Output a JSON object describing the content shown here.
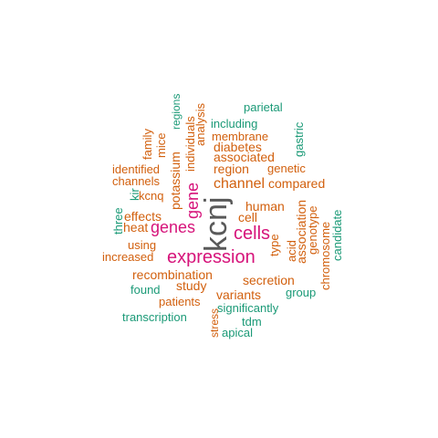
{
  "colors": {
    "dark": "#595959",
    "pink": "#d6137a",
    "orange": "#d2600e",
    "green": "#1b9a77"
  },
  "words": [
    {
      "key": "kcnj",
      "text": "kcnj",
      "color": "dark"
    },
    {
      "key": "cells",
      "text": "cells",
      "color": "pink"
    },
    {
      "key": "expression",
      "text": "expression",
      "color": "pink"
    },
    {
      "key": "genes",
      "text": "genes",
      "color": "pink"
    },
    {
      "key": "gene",
      "text": "gene",
      "color": "pink"
    },
    {
      "key": "channel",
      "text": "channel",
      "color": "orange"
    },
    {
      "key": "region",
      "text": "region",
      "color": "orange"
    },
    {
      "key": "human",
      "text": "human",
      "color": "orange"
    },
    {
      "key": "cell",
      "text": "cell",
      "color": "orange"
    },
    {
      "key": "recombination",
      "text": "recombination",
      "color": "orange"
    },
    {
      "key": "secretion",
      "text": "secretion",
      "color": "orange"
    },
    {
      "key": "variants",
      "text": "variants",
      "color": "orange"
    },
    {
      "key": "study",
      "text": "study",
      "color": "orange"
    },
    {
      "key": "potassium",
      "text": "potassium",
      "color": "orange"
    },
    {
      "key": "effects",
      "text": "effects",
      "color": "orange"
    },
    {
      "key": "heat",
      "text": "heat",
      "color": "orange"
    },
    {
      "key": "associated",
      "text": "associated",
      "color": "orange"
    },
    {
      "key": "compared",
      "text": "compared",
      "color": "orange"
    },
    {
      "key": "diabetes",
      "text": "diabetes",
      "color": "orange"
    },
    {
      "key": "membrane",
      "text": "membrane",
      "color": "orange"
    },
    {
      "key": "analysis",
      "text": "analysis",
      "color": "orange"
    },
    {
      "key": "individuals",
      "text": "individuals",
      "color": "orange"
    },
    {
      "key": "association",
      "text": "association",
      "color": "orange"
    },
    {
      "key": "genotype",
      "text": "genotype",
      "color": "orange"
    },
    {
      "key": "chromosome",
      "text": "chromosome",
      "color": "orange"
    },
    {
      "key": "acid",
      "text": "acid",
      "color": "orange"
    },
    {
      "key": "type",
      "text": "type",
      "color": "orange"
    },
    {
      "key": "using",
      "text": "using",
      "color": "orange"
    },
    {
      "key": "increased",
      "text": "increased",
      "color": "orange"
    },
    {
      "key": "patients",
      "text": "patients",
      "color": "orange"
    },
    {
      "key": "identified",
      "text": "identified",
      "color": "orange"
    },
    {
      "key": "channels",
      "text": "channels",
      "color": "orange"
    },
    {
      "key": "kcnq",
      "text": "kcnq",
      "color": "orange"
    },
    {
      "key": "genetic",
      "text": "genetic",
      "color": "orange"
    },
    {
      "key": "mice",
      "text": "mice",
      "color": "orange"
    },
    {
      "key": "family",
      "text": "family",
      "color": "orange"
    },
    {
      "key": "stress",
      "text": "stress",
      "color": "orange"
    },
    {
      "key": "parietal",
      "text": "parietal",
      "color": "green"
    },
    {
      "key": "including",
      "text": "including",
      "color": "green"
    },
    {
      "key": "regions",
      "text": "regions",
      "color": "green"
    },
    {
      "key": "gastric",
      "text": "gastric",
      "color": "green"
    },
    {
      "key": "kir",
      "text": "kir",
      "color": "green"
    },
    {
      "key": "three",
      "text": "three",
      "color": "green"
    },
    {
      "key": "candidate",
      "text": "candidate",
      "color": "green"
    },
    {
      "key": "group",
      "text": "group",
      "color": "green"
    },
    {
      "key": "found",
      "text": "found",
      "color": "green"
    },
    {
      "key": "transcription",
      "text": "transcription",
      "color": "green"
    },
    {
      "key": "significantly",
      "text": "significantly",
      "color": "green"
    },
    {
      "key": "tdm",
      "text": "tdm",
      "color": "green"
    },
    {
      "key": "apical",
      "text": "apical",
      "color": "green"
    }
  ]
}
